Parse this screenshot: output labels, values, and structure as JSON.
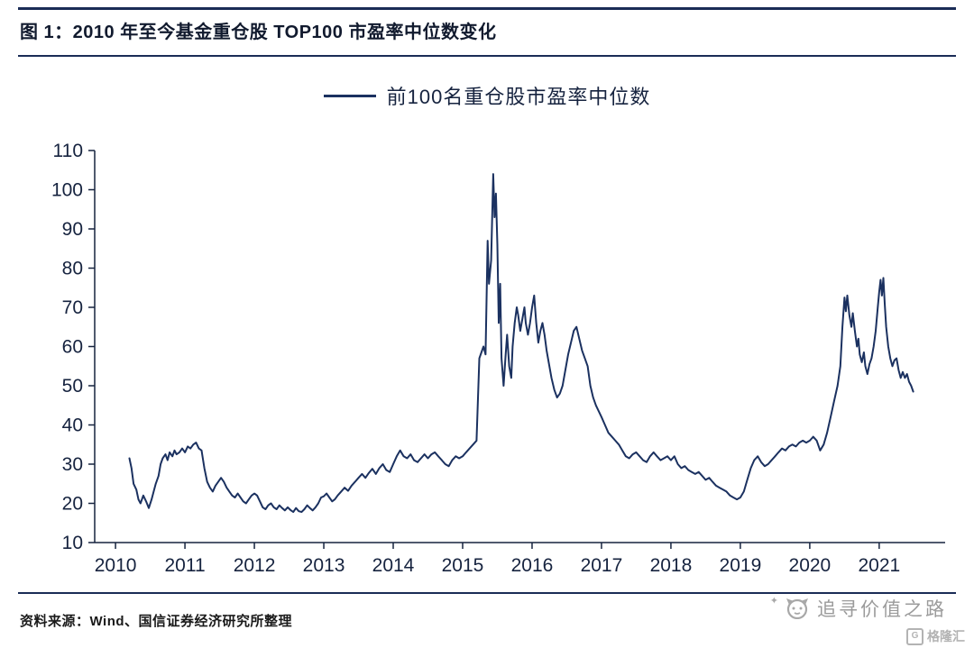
{
  "header": {
    "title": "图 1：2010 年至今基金重仓股 TOP100 市盈率中位数变化"
  },
  "legend": {
    "label": "前100名重仓股市盈率中位数"
  },
  "footer": {
    "source": "资料来源：Wind、国信证券经济研究所整理",
    "watermark": "追寻价值之路",
    "logo": "格隆汇"
  },
  "colors": {
    "line": "#1b3160",
    "axis": "#16233f",
    "text": "#16233f",
    "rule": "#1a2c56",
    "gray": "#9b9b9b"
  },
  "chart_data": {
    "type": "line",
    "title": "2010 年至今基金重仓股 TOP100 市盈率中位数变化",
    "xlabel": "",
    "ylabel": "",
    "xlim": [
      2009.7,
      2021.95
    ],
    "ylim": [
      10,
      110
    ],
    "xticks": [
      2010,
      2011,
      2012,
      2013,
      2014,
      2015,
      2016,
      2017,
      2018,
      2019,
      2020,
      2021
    ],
    "yticks": [
      10,
      20,
      30,
      40,
      50,
      60,
      70,
      80,
      90,
      100,
      110
    ],
    "grid": false,
    "legend_position": "top-center",
    "series": [
      {
        "name": "前100名重仓股市盈率中位数",
        "points": [
          [
            2010.2,
            31.5
          ],
          [
            2010.23,
            29
          ],
          [
            2010.26,
            25
          ],
          [
            2010.3,
            23.5
          ],
          [
            2010.33,
            21
          ],
          [
            2010.36,
            20
          ],
          [
            2010.4,
            22
          ],
          [
            2010.44,
            20.5
          ],
          [
            2010.48,
            18.8
          ],
          [
            2010.52,
            21
          ],
          [
            2010.55,
            23
          ],
          [
            2010.58,
            25
          ],
          [
            2010.62,
            27
          ],
          [
            2010.65,
            30
          ],
          [
            2010.68,
            31.5
          ],
          [
            2010.72,
            32.5
          ],
          [
            2010.75,
            31
          ],
          [
            2010.78,
            33
          ],
          [
            2010.82,
            32
          ],
          [
            2010.85,
            33.5
          ],
          [
            2010.88,
            32.5
          ],
          [
            2010.92,
            33
          ],
          [
            2010.96,
            34
          ],
          [
            2011.0,
            33
          ],
          [
            2011.04,
            34.5
          ],
          [
            2011.08,
            34
          ],
          [
            2011.12,
            35
          ],
          [
            2011.16,
            35.5
          ],
          [
            2011.2,
            34
          ],
          [
            2011.24,
            33.5
          ],
          [
            2011.28,
            29
          ],
          [
            2011.32,
            25.5
          ],
          [
            2011.36,
            24
          ],
          [
            2011.4,
            23
          ],
          [
            2011.44,
            24.5
          ],
          [
            2011.48,
            25.5
          ],
          [
            2011.52,
            26.5
          ],
          [
            2011.56,
            25.5
          ],
          [
            2011.6,
            24
          ],
          [
            2011.64,
            23
          ],
          [
            2011.68,
            22
          ],
          [
            2011.72,
            21.5
          ],
          [
            2011.76,
            22.5
          ],
          [
            2011.8,
            21.5
          ],
          [
            2011.84,
            20.5
          ],
          [
            2011.88,
            20
          ],
          [
            2011.92,
            21
          ],
          [
            2011.96,
            22
          ],
          [
            2012.0,
            22.5
          ],
          [
            2012.04,
            22
          ],
          [
            2012.08,
            20.5
          ],
          [
            2012.12,
            19
          ],
          [
            2012.16,
            18.5
          ],
          [
            2012.2,
            19.5
          ],
          [
            2012.24,
            20
          ],
          [
            2012.28,
            19
          ],
          [
            2012.32,
            18.5
          ],
          [
            2012.36,
            19.5
          ],
          [
            2012.4,
            18.8
          ],
          [
            2012.44,
            18.2
          ],
          [
            2012.48,
            19
          ],
          [
            2012.52,
            18.3
          ],
          [
            2012.56,
            17.8
          ],
          [
            2012.6,
            18.8
          ],
          [
            2012.64,
            18
          ],
          [
            2012.68,
            17.8
          ],
          [
            2012.72,
            18.5
          ],
          [
            2012.76,
            19.5
          ],
          [
            2012.8,
            18.8
          ],
          [
            2012.84,
            18.2
          ],
          [
            2012.88,
            19
          ],
          [
            2012.92,
            20
          ],
          [
            2012.96,
            21.5
          ],
          [
            2013.0,
            21.8
          ],
          [
            2013.04,
            22.5
          ],
          [
            2013.08,
            21.5
          ],
          [
            2013.12,
            20.5
          ],
          [
            2013.16,
            21
          ],
          [
            2013.2,
            22
          ],
          [
            2013.25,
            23
          ],
          [
            2013.3,
            24
          ],
          [
            2013.35,
            23.2
          ],
          [
            2013.4,
            24.5
          ],
          [
            2013.45,
            25.5
          ],
          [
            2013.5,
            26.5
          ],
          [
            2013.55,
            27.5
          ],
          [
            2013.6,
            26.5
          ],
          [
            2013.65,
            27.8
          ],
          [
            2013.7,
            28.8
          ],
          [
            2013.75,
            27.5
          ],
          [
            2013.8,
            29
          ],
          [
            2013.85,
            30
          ],
          [
            2013.9,
            28.5
          ],
          [
            2013.95,
            28
          ],
          [
            2014.0,
            30
          ],
          [
            2014.05,
            32
          ],
          [
            2014.1,
            33.5
          ],
          [
            2014.15,
            32
          ],
          [
            2014.2,
            31.5
          ],
          [
            2014.25,
            32.5
          ],
          [
            2014.3,
            31
          ],
          [
            2014.35,
            30.5
          ],
          [
            2014.4,
            31.5
          ],
          [
            2014.45,
            32.5
          ],
          [
            2014.5,
            31.5
          ],
          [
            2014.55,
            32.5
          ],
          [
            2014.6,
            33
          ],
          [
            2014.65,
            32
          ],
          [
            2014.7,
            31
          ],
          [
            2014.75,
            30
          ],
          [
            2014.8,
            29.5
          ],
          [
            2014.85,
            31
          ],
          [
            2014.9,
            32
          ],
          [
            2014.95,
            31.5
          ],
          [
            2015.0,
            32
          ],
          [
            2015.05,
            33
          ],
          [
            2015.1,
            34
          ],
          [
            2015.15,
            35
          ],
          [
            2015.2,
            36
          ],
          [
            2015.24,
            57
          ],
          [
            2015.27,
            58.5
          ],
          [
            2015.3,
            60
          ],
          [
            2015.33,
            58
          ],
          [
            2015.36,
            87
          ],
          [
            2015.38,
            76
          ],
          [
            2015.41,
            82
          ],
          [
            2015.44,
            104
          ],
          [
            2015.46,
            93
          ],
          [
            2015.48,
            99
          ],
          [
            2015.5,
            86
          ],
          [
            2015.52,
            66
          ],
          [
            2015.54,
            76
          ],
          [
            2015.56,
            57
          ],
          [
            2015.59,
            50
          ],
          [
            2015.62,
            58
          ],
          [
            2015.64,
            63
          ],
          [
            2015.67,
            55
          ],
          [
            2015.7,
            52
          ],
          [
            2015.72,
            60
          ],
          [
            2015.75,
            66
          ],
          [
            2015.78,
            70
          ],
          [
            2015.8,
            68
          ],
          [
            2015.83,
            64
          ],
          [
            2015.86,
            67
          ],
          [
            2015.89,
            70
          ],
          [
            2015.91,
            66
          ],
          [
            2015.94,
            63
          ],
          [
            2015.97,
            66
          ],
          [
            2016.0,
            70
          ],
          [
            2016.03,
            73
          ],
          [
            2016.06,
            66
          ],
          [
            2016.09,
            61
          ],
          [
            2016.12,
            64
          ],
          [
            2016.15,
            66
          ],
          [
            2016.18,
            63
          ],
          [
            2016.21,
            59
          ],
          [
            2016.24,
            56
          ],
          [
            2016.28,
            52
          ],
          [
            2016.32,
            49
          ],
          [
            2016.36,
            47
          ],
          [
            2016.4,
            48
          ],
          [
            2016.44,
            50
          ],
          [
            2016.48,
            54
          ],
          [
            2016.52,
            58
          ],
          [
            2016.56,
            61
          ],
          [
            2016.6,
            64
          ],
          [
            2016.64,
            65
          ],
          [
            2016.68,
            62
          ],
          [
            2016.72,
            59
          ],
          [
            2016.76,
            57
          ],
          [
            2016.8,
            55
          ],
          [
            2016.84,
            50
          ],
          [
            2016.88,
            47
          ],
          [
            2016.92,
            45
          ],
          [
            2016.96,
            43.5
          ],
          [
            2017.0,
            42
          ],
          [
            2017.05,
            40
          ],
          [
            2017.1,
            38
          ],
          [
            2017.15,
            37
          ],
          [
            2017.2,
            36
          ],
          [
            2017.25,
            35
          ],
          [
            2017.3,
            33.5
          ],
          [
            2017.35,
            32
          ],
          [
            2017.4,
            31.5
          ],
          [
            2017.45,
            32.5
          ],
          [
            2017.5,
            33
          ],
          [
            2017.55,
            32
          ],
          [
            2017.6,
            31
          ],
          [
            2017.65,
            30.5
          ],
          [
            2017.7,
            32
          ],
          [
            2017.75,
            33
          ],
          [
            2017.8,
            32
          ],
          [
            2017.85,
            31
          ],
          [
            2017.9,
            31.5
          ],
          [
            2017.95,
            32
          ],
          [
            2018.0,
            31
          ],
          [
            2018.05,
            32
          ],
          [
            2018.1,
            30
          ],
          [
            2018.15,
            29
          ],
          [
            2018.2,
            29.5
          ],
          [
            2018.25,
            28.5
          ],
          [
            2018.3,
            28
          ],
          [
            2018.35,
            27.5
          ],
          [
            2018.4,
            28
          ],
          [
            2018.45,
            27
          ],
          [
            2018.5,
            26
          ],
          [
            2018.55,
            26.5
          ],
          [
            2018.6,
            25.5
          ],
          [
            2018.65,
            24.5
          ],
          [
            2018.7,
            24
          ],
          [
            2018.75,
            23.5
          ],
          [
            2018.8,
            23
          ],
          [
            2018.85,
            22
          ],
          [
            2018.9,
            21.5
          ],
          [
            2018.95,
            21
          ],
          [
            2019.0,
            21.5
          ],
          [
            2019.05,
            23
          ],
          [
            2019.1,
            26
          ],
          [
            2019.15,
            29
          ],
          [
            2019.2,
            31
          ],
          [
            2019.25,
            32
          ],
          [
            2019.3,
            30.5
          ],
          [
            2019.35,
            29.5
          ],
          [
            2019.4,
            30
          ],
          [
            2019.45,
            31
          ],
          [
            2019.5,
            32
          ],
          [
            2019.55,
            33
          ],
          [
            2019.6,
            34
          ],
          [
            2019.65,
            33.5
          ],
          [
            2019.7,
            34.5
          ],
          [
            2019.75,
            35
          ],
          [
            2019.8,
            34.5
          ],
          [
            2019.85,
            35.5
          ],
          [
            2019.9,
            36
          ],
          [
            2019.95,
            35.5
          ],
          [
            2020.0,
            36
          ],
          [
            2020.05,
            37
          ],
          [
            2020.1,
            36
          ],
          [
            2020.15,
            33.5
          ],
          [
            2020.2,
            35
          ],
          [
            2020.25,
            38
          ],
          [
            2020.3,
            42
          ],
          [
            2020.35,
            46
          ],
          [
            2020.4,
            50
          ],
          [
            2020.44,
            55
          ],
          [
            2020.47,
            65
          ],
          [
            2020.5,
            72.5
          ],
          [
            2020.52,
            69
          ],
          [
            2020.54,
            73
          ],
          [
            2020.57,
            68
          ],
          [
            2020.6,
            65
          ],
          [
            2020.62,
            68.5
          ],
          [
            2020.65,
            64
          ],
          [
            2020.68,
            60
          ],
          [
            2020.7,
            62
          ],
          [
            2020.72,
            58
          ],
          [
            2020.75,
            56
          ],
          [
            2020.78,
            58.5
          ],
          [
            2020.8,
            55
          ],
          [
            2020.83,
            53
          ],
          [
            2020.86,
            55.5
          ],
          [
            2020.89,
            57
          ],
          [
            2020.92,
            60
          ],
          [
            2020.95,
            64
          ],
          [
            2020.98,
            70
          ],
          [
            2021.0,
            74
          ],
          [
            2021.02,
            77
          ],
          [
            2021.04,
            73
          ],
          [
            2021.06,
            77.5
          ],
          [
            2021.08,
            71
          ],
          [
            2021.1,
            65
          ],
          [
            2021.13,
            60
          ],
          [
            2021.16,
            57
          ],
          [
            2021.19,
            55
          ],
          [
            2021.22,
            56.5
          ],
          [
            2021.25,
            57
          ],
          [
            2021.28,
            54
          ],
          [
            2021.31,
            52
          ],
          [
            2021.34,
            53.5
          ],
          [
            2021.37,
            52
          ],
          [
            2021.4,
            53
          ],
          [
            2021.43,
            51
          ],
          [
            2021.46,
            50
          ],
          [
            2021.49,
            48.5
          ]
        ]
      }
    ]
  }
}
